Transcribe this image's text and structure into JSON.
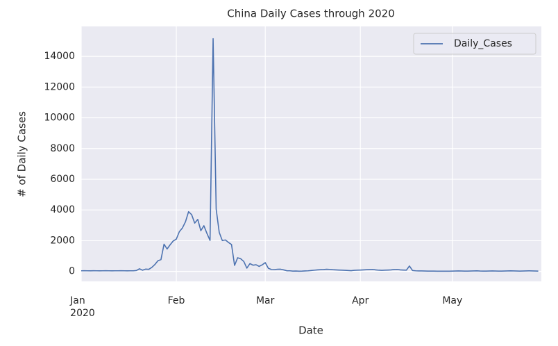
{
  "chart_data": {
    "type": "line",
    "title": "China Daily Cases through 2020",
    "xlabel": "Date",
    "ylabel": "# of Daily Cases",
    "x": [
      "2020-01-01",
      "2020-01-02",
      "2020-01-03",
      "2020-01-04",
      "2020-01-05",
      "2020-01-06",
      "2020-01-07",
      "2020-01-08",
      "2020-01-09",
      "2020-01-10",
      "2020-01-11",
      "2020-01-12",
      "2020-01-13",
      "2020-01-14",
      "2020-01-15",
      "2020-01-16",
      "2020-01-17",
      "2020-01-18",
      "2020-01-19",
      "2020-01-20",
      "2020-01-21",
      "2020-01-22",
      "2020-01-23",
      "2020-01-24",
      "2020-01-25",
      "2020-01-26",
      "2020-01-27",
      "2020-01-28",
      "2020-01-29",
      "2020-01-30",
      "2020-01-31",
      "2020-02-01",
      "2020-02-02",
      "2020-02-03",
      "2020-02-04",
      "2020-02-05",
      "2020-02-06",
      "2020-02-07",
      "2020-02-08",
      "2020-02-09",
      "2020-02-10",
      "2020-02-11",
      "2020-02-12",
      "2020-02-13",
      "2020-02-14",
      "2020-02-15",
      "2020-02-16",
      "2020-02-17",
      "2020-02-18",
      "2020-02-19",
      "2020-02-20",
      "2020-02-21",
      "2020-02-22",
      "2020-02-23",
      "2020-02-24",
      "2020-02-25",
      "2020-02-26",
      "2020-02-27",
      "2020-02-28",
      "2020-02-29",
      "2020-03-01",
      "2020-03-02",
      "2020-03-03",
      "2020-03-04",
      "2020-03-05",
      "2020-03-06",
      "2020-03-07",
      "2020-03-08",
      "2020-03-09",
      "2020-03-10",
      "2020-03-11",
      "2020-03-12",
      "2020-03-13",
      "2020-03-14",
      "2020-03-15",
      "2020-03-16",
      "2020-03-17",
      "2020-03-18",
      "2020-03-19",
      "2020-03-20",
      "2020-03-21",
      "2020-03-22",
      "2020-03-23",
      "2020-03-24",
      "2020-03-25",
      "2020-03-26",
      "2020-03-27",
      "2020-03-28",
      "2020-03-29",
      "2020-03-30",
      "2020-03-31",
      "2020-04-01",
      "2020-04-02",
      "2020-04-03",
      "2020-04-04",
      "2020-04-05",
      "2020-04-06",
      "2020-04-07",
      "2020-04-08",
      "2020-04-09",
      "2020-04-10",
      "2020-04-11",
      "2020-04-12",
      "2020-04-13",
      "2020-04-14",
      "2020-04-15",
      "2020-04-16",
      "2020-04-17",
      "2020-04-18",
      "2020-04-19",
      "2020-04-20",
      "2020-04-21",
      "2020-04-22",
      "2020-04-23",
      "2020-04-24",
      "2020-04-25",
      "2020-04-26",
      "2020-04-27",
      "2020-04-28",
      "2020-04-29",
      "2020-04-30",
      "2020-05-01",
      "2020-05-02",
      "2020-05-03",
      "2020-05-04",
      "2020-05-05",
      "2020-05-06",
      "2020-05-07",
      "2020-05-08",
      "2020-05-09",
      "2020-05-10",
      "2020-05-11",
      "2020-05-12",
      "2020-05-13",
      "2020-05-14",
      "2020-05-15",
      "2020-05-16",
      "2020-05-17",
      "2020-05-18",
      "2020-05-19",
      "2020-05-20",
      "2020-05-21",
      "2020-05-22",
      "2020-05-23",
      "2020-05-24",
      "2020-05-25",
      "2020-05-26",
      "2020-05-27",
      "2020-05-28",
      "2020-05-29"
    ],
    "series": [
      {
        "name": "Daily_Cases",
        "color": "#4c72b0",
        "values": [
          40,
          45,
          40,
          38,
          42,
          40,
          38,
          40,
          42,
          40,
          38,
          40,
          40,
          42,
          40,
          38,
          40,
          40,
          60,
          170,
          77,
          149,
          131,
          259,
          444,
          688,
          769,
          1771,
          1459,
          1737,
          1982,
          2102,
          2590,
          2829,
          3235,
          3887,
          3694,
          3143,
          3385,
          2652,
          2973,
          2467,
          2015,
          15152,
          4050,
          2538,
          2007,
          2048,
          1886,
          1749,
          391,
          889,
          823,
          648,
          214,
          508,
          406,
          433,
          327,
          427,
          573,
          202,
          125,
          119,
          139,
          143,
          99,
          44,
          40,
          19,
          24,
          15,
          20,
          30,
          40,
          60,
          80,
          100,
          110,
          120,
          140,
          130,
          110,
          100,
          90,
          80,
          70,
          60,
          50,
          70,
          80,
          90,
          100,
          110,
          120,
          130,
          100,
          80,
          70,
          80,
          90,
          100,
          120,
          130,
          100,
          90,
          80,
          352,
          60,
          40,
          30,
          30,
          25,
          20,
          20,
          20,
          15,
          15,
          15,
          15,
          15,
          20,
          25,
          30,
          25,
          20,
          20,
          25,
          30,
          35,
          25,
          20,
          20,
          25,
          30,
          25,
          20,
          20,
          25,
          30,
          35,
          30,
          25,
          20,
          25,
          30,
          35,
          30,
          25,
          20
        ]
      }
    ],
    "xlim": [
      "2020-01-01",
      "2020-05-30"
    ],
    "xticks": [
      {
        "value": "2020-01-01",
        "label": "Jan\n2020"
      },
      {
        "value": "2020-02-01",
        "label": "Feb"
      },
      {
        "value": "2020-03-01",
        "label": "Mar"
      },
      {
        "value": "2020-04-01",
        "label": "Apr"
      },
      {
        "value": "2020-05-01",
        "label": "May"
      }
    ],
    "ylim": [
      -650,
      15950
    ],
    "yticks": [
      0,
      2000,
      4000,
      6000,
      8000,
      10000,
      12000,
      14000
    ],
    "grid": true,
    "legend": "upper right"
  }
}
